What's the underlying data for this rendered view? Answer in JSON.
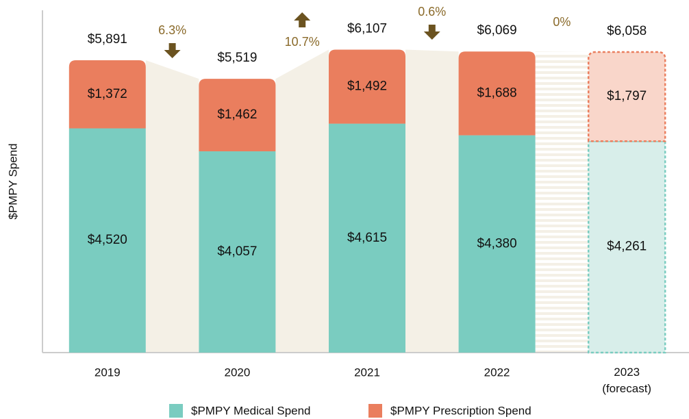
{
  "chart_data": {
    "type": "stacked_bar",
    "y_axis_label": "$PMPY Spend",
    "categories": [
      "2019",
      "2020",
      "2021",
      "2022",
      "2023 (forecast)"
    ],
    "forecast": [
      false,
      false,
      false,
      false,
      true
    ],
    "series": [
      {
        "name": "$PMPY Medical Spend",
        "color": "#7accc0",
        "forecast_color": "#d8eeea",
        "values": [
          4520,
          4057,
          4615,
          4380,
          4261
        ],
        "value_labels": [
          "$4,520",
          "$4,057",
          "$4,615",
          "$4,380",
          "$4,261"
        ]
      },
      {
        "name": "$PMPY Prescription Spend",
        "color": "#ea7e5e",
        "forecast_color": "#f9d6ca",
        "values": [
          1372,
          1462,
          1492,
          1688,
          1797
        ],
        "value_labels": [
          "$1,372",
          "$1,462",
          "$1,492",
          "$1,688",
          "$1,797"
        ]
      }
    ],
    "totals": [
      5891,
      5519,
      6107,
      6069,
      6058
    ],
    "total_labels": [
      "$5,891",
      "$5,519",
      "$6,107",
      "$6,069",
      "$6,058"
    ],
    "changes": [
      -6.3,
      10.7,
      -0.6,
      0
    ],
    "change_labels": [
      "6.3%",
      "10.7%",
      "0.6%",
      "0%"
    ],
    "arrow_color": "#6b5320",
    "connector_color": "#f4f0e6",
    "ylim": [
      0,
      6900
    ]
  }
}
